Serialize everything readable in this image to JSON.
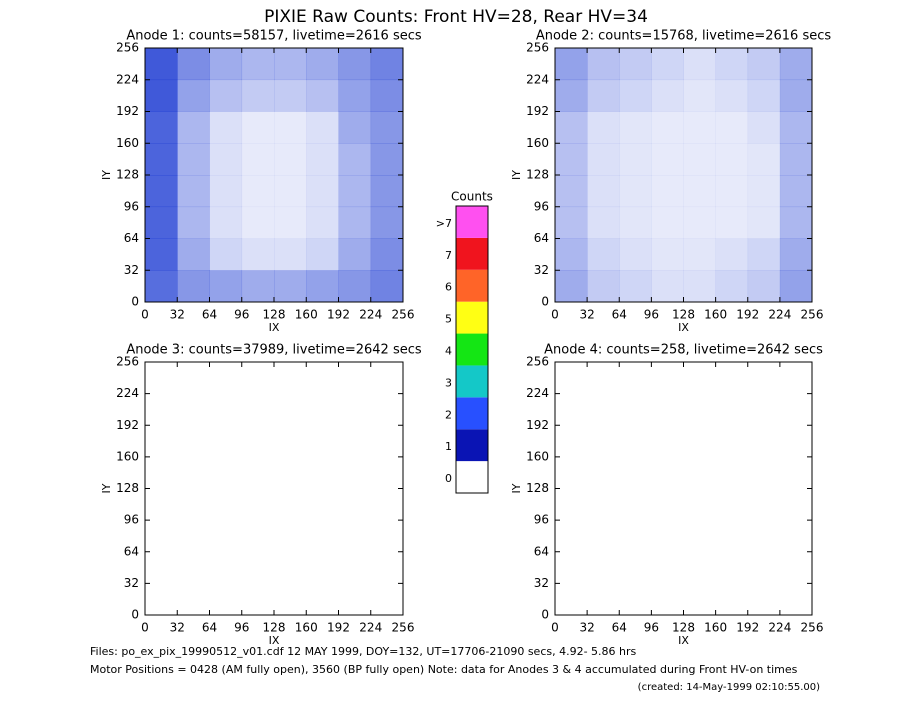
{
  "title": "PIXIE Raw Counts:  Front HV=28, Rear HV=34",
  "chart_data": [
    {
      "type": "heatmap",
      "title": "Anode 1: counts=58157, livetime=2616 secs",
      "xlabel": "IX",
      "ylabel": "IY",
      "xlim": [
        0,
        256
      ],
      "ylim": [
        0,
        256
      ],
      "xticks": [
        0,
        32,
        64,
        96,
        128,
        160,
        192,
        224,
        256
      ],
      "yticks": [
        0,
        32,
        64,
        96,
        128,
        160,
        192,
        224,
        256
      ],
      "color": "#1030d0",
      "z": [
        [
          0.7,
          0.5,
          0.45,
          0.4,
          0.4,
          0.45,
          0.5,
          0.6
        ],
        [
          0.75,
          0.4,
          0.2,
          0.15,
          0.15,
          0.2,
          0.4,
          0.55
        ],
        [
          0.75,
          0.35,
          0.15,
          0.1,
          0.1,
          0.15,
          0.35,
          0.5
        ],
        [
          0.75,
          0.35,
          0.15,
          0.1,
          0.1,
          0.15,
          0.35,
          0.5
        ],
        [
          0.75,
          0.35,
          0.15,
          0.1,
          0.1,
          0.15,
          0.35,
          0.5
        ],
        [
          0.75,
          0.35,
          0.15,
          0.1,
          0.1,
          0.15,
          0.4,
          0.5
        ],
        [
          0.8,
          0.45,
          0.3,
          0.25,
          0.25,
          0.3,
          0.45,
          0.55
        ],
        [
          0.8,
          0.55,
          0.4,
          0.35,
          0.35,
          0.4,
          0.5,
          0.6
        ]
      ]
    },
    {
      "type": "heatmap",
      "title": "Anode 2: counts=15768, livetime=2616 secs",
      "xlabel": "IX",
      "ylabel": "IY",
      "xlim": [
        0,
        256
      ],
      "ylim": [
        0,
        256
      ],
      "xticks": [
        0,
        32,
        64,
        96,
        128,
        160,
        192,
        224,
        256
      ],
      "yticks": [
        0,
        32,
        64,
        96,
        128,
        160,
        192,
        224,
        256
      ],
      "color": "#1030d0",
      "z": [
        [
          0.4,
          0.25,
          0.2,
          0.15,
          0.15,
          0.2,
          0.25,
          0.45
        ],
        [
          0.35,
          0.2,
          0.15,
          0.12,
          0.12,
          0.15,
          0.2,
          0.4
        ],
        [
          0.3,
          0.15,
          0.12,
          0.1,
          0.1,
          0.1,
          0.12,
          0.35
        ],
        [
          0.3,
          0.15,
          0.12,
          0.1,
          0.1,
          0.1,
          0.12,
          0.35
        ],
        [
          0.3,
          0.15,
          0.12,
          0.1,
          0.1,
          0.1,
          0.12,
          0.35
        ],
        [
          0.3,
          0.15,
          0.12,
          0.1,
          0.1,
          0.1,
          0.15,
          0.35
        ],
        [
          0.4,
          0.25,
          0.2,
          0.15,
          0.12,
          0.15,
          0.2,
          0.4
        ],
        [
          0.45,
          0.3,
          0.25,
          0.2,
          0.15,
          0.2,
          0.25,
          0.4
        ]
      ]
    },
    {
      "type": "heatmap",
      "title": "Anode 3: counts=37989, livetime=2642 secs",
      "xlabel": "IX",
      "ylabel": "IY",
      "xlim": [
        0,
        256
      ],
      "ylim": [
        0,
        256
      ],
      "xticks": [
        0,
        32,
        64,
        96,
        128,
        160,
        192,
        224,
        256
      ],
      "yticks": [
        0,
        32,
        64,
        96,
        128,
        160,
        192,
        224,
        256
      ],
      "color": "#1030d0",
      "z": [
        [
          0,
          0,
          0,
          0,
          0,
          0,
          0,
          0
        ],
        [
          0,
          0,
          0,
          0,
          0,
          0,
          0,
          0
        ],
        [
          0,
          0,
          0,
          0,
          0,
          0,
          0,
          0
        ],
        [
          0,
          0,
          0,
          0,
          0,
          0,
          0,
          0
        ],
        [
          0,
          0,
          0,
          0,
          0,
          0,
          0,
          0
        ],
        [
          0,
          0,
          0,
          0,
          0,
          0,
          0,
          0
        ],
        [
          0,
          0,
          0,
          0,
          0,
          0,
          0,
          0
        ],
        [
          0,
          0,
          0,
          0,
          0,
          0,
          0,
          0
        ]
      ]
    },
    {
      "type": "heatmap",
      "title": "Anode 4: counts=258, livetime=2642 secs",
      "xlabel": "IX",
      "ylabel": "IY",
      "xlim": [
        0,
        256
      ],
      "ylim": [
        0,
        256
      ],
      "xticks": [
        0,
        32,
        64,
        96,
        128,
        160,
        192,
        224,
        256
      ],
      "yticks": [
        0,
        32,
        64,
        96,
        128,
        160,
        192,
        224,
        256
      ],
      "color": "#1030d0",
      "z": [
        [
          0,
          0,
          0,
          0,
          0,
          0,
          0,
          0
        ],
        [
          0,
          0,
          0,
          0,
          0,
          0,
          0,
          0
        ],
        [
          0,
          0,
          0,
          0,
          0,
          0,
          0,
          0
        ],
        [
          0,
          0,
          0,
          0,
          0,
          0,
          0,
          0
        ],
        [
          0,
          0,
          0,
          0,
          0,
          0,
          0,
          0
        ],
        [
          0,
          0,
          0,
          0,
          0,
          0,
          0,
          0
        ],
        [
          0,
          0,
          0,
          0,
          0,
          0,
          0,
          0
        ],
        [
          0,
          0,
          0,
          0,
          0,
          0,
          0,
          0
        ]
      ]
    }
  ],
  "colorbar": {
    "title": "Counts",
    "labels": [
      "0",
      "1",
      "2",
      "3",
      "4",
      "5",
      "6",
      "7",
      ">7"
    ],
    "colors": [
      "#ffffff",
      "#0a14b4",
      "#2850ff",
      "#14c8c8",
      "#14e614",
      "#ffff14",
      "#ff6428",
      "#f0141e",
      "#ff50f0"
    ]
  },
  "footer": [
    "Files: po_ex_pix_19990512_v01.cdf    12 MAY 1999, DOY=132, UT=17706-21090 secs,  4.92- 5.86 hrs",
    "Motor Positions = 0428 (AM fully open), 3560 (BP fully open)    Note: data for Anodes 3 & 4 accumulated during Front HV-on times",
    "(created: 14-May-1999 02:10:55.00)"
  ]
}
